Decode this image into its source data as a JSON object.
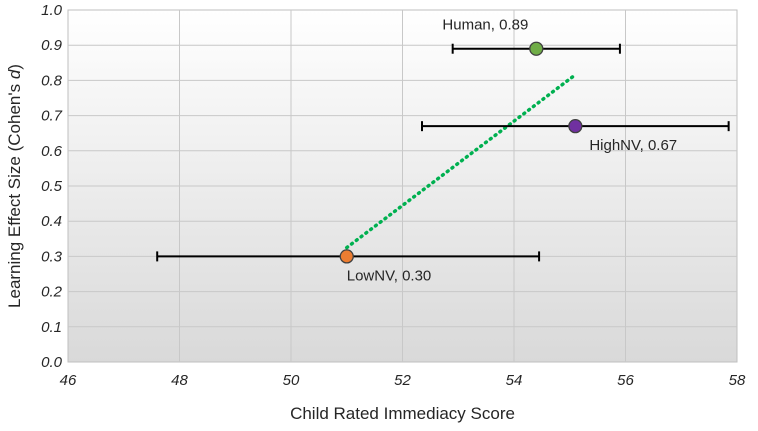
{
  "chart_data": {
    "type": "scatter",
    "title": "",
    "xlabel": "Child Rated Immediacy Score",
    "ylabel": "Learning Effect Size (Cohen's d)",
    "ylabel_main": "Learning Effect Size (Cohen's ",
    "ylabel_italic": "d",
    "ylabel_close": ")",
    "xlim": [
      46,
      58
    ],
    "ylim": [
      0.0,
      1.0
    ],
    "xticks": [
      46,
      48,
      50,
      52,
      54,
      56,
      58
    ],
    "yticks": [
      0.0,
      0.1,
      0.2,
      0.3,
      0.4,
      0.5,
      0.6,
      0.7,
      0.8,
      0.9,
      1.0
    ],
    "xtick_labels": [
      "46",
      "48",
      "50",
      "52",
      "54",
      "56",
      "58"
    ],
    "ytick_labels": [
      "0.0",
      "0.1",
      "0.2",
      "0.3",
      "0.4",
      "0.5",
      "0.6",
      "0.7",
      "0.8",
      "0.9",
      "1.0"
    ],
    "grid": true,
    "points": [
      {
        "name": "Human",
        "label": "Human, 0.89",
        "x": 54.4,
        "y": 0.89,
        "err_low": 52.9,
        "err_high": 55.9,
        "color": "#70ad47",
        "label_pos": "above-left"
      },
      {
        "name": "HighNV",
        "label": "HighNV, 0.67",
        "x": 55.1,
        "y": 0.67,
        "err_low": 52.35,
        "err_high": 57.85,
        "color": "#7030a0",
        "label_pos": "below-right"
      },
      {
        "name": "LowNV",
        "label": "LowNV, 0.30",
        "x": 51.0,
        "y": 0.3,
        "err_low": 47.6,
        "err_high": 54.45,
        "color": "#ed7d31",
        "label_pos": "below-right"
      }
    ],
    "trendline": {
      "style": "dotted",
      "color": "#00b050",
      "x_start": 51.0,
      "x_end": 55.05,
      "y_start": 0.325,
      "y_end": 0.81
    }
  }
}
